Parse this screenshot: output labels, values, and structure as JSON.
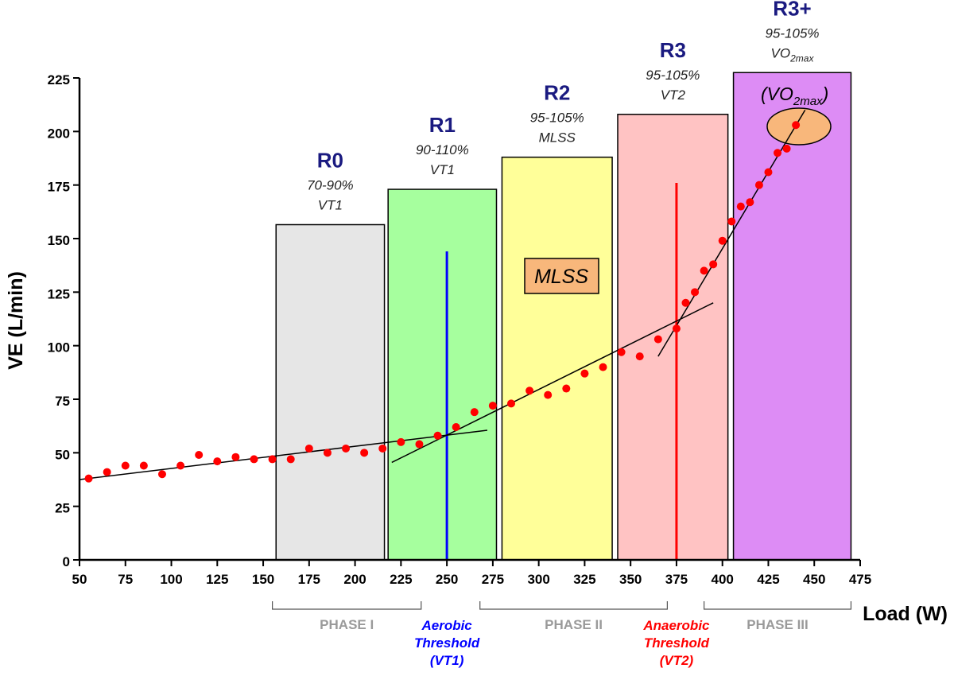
{
  "chart_data": {
    "type": "scatter",
    "title": "",
    "xlabel": "Load (W)",
    "ylabel": "VE (L/min)",
    "xlim": [
      50,
      475
    ],
    "ylim": [
      0,
      225
    ],
    "x_ticks": [
      50,
      75,
      100,
      125,
      150,
      175,
      200,
      225,
      250,
      275,
      300,
      325,
      350,
      375,
      400,
      425,
      450,
      475
    ],
    "y_ticks": [
      0,
      25,
      50,
      75,
      100,
      125,
      150,
      175,
      200,
      225
    ],
    "grid": false,
    "marker_color": "#ff0000",
    "series": [
      {
        "points": [
          {
            "x": 55,
            "y": 38
          },
          {
            "x": 65,
            "y": 41
          },
          {
            "x": 75,
            "y": 44
          },
          {
            "x": 85,
            "y": 44
          },
          {
            "x": 95,
            "y": 40
          },
          {
            "x": 105,
            "y": 44
          },
          {
            "x": 115,
            "y": 49
          },
          {
            "x": 125,
            "y": 46
          },
          {
            "x": 135,
            "y": 48
          },
          {
            "x": 145,
            "y": 47
          },
          {
            "x": 155,
            "y": 47
          },
          {
            "x": 165,
            "y": 47
          },
          {
            "x": 175,
            "y": 52
          },
          {
            "x": 185,
            "y": 50
          },
          {
            "x": 195,
            "y": 52
          },
          {
            "x": 205,
            "y": 50
          },
          {
            "x": 215,
            "y": 52
          },
          {
            "x": 225,
            "y": 55
          },
          {
            "x": 235,
            "y": 54
          },
          {
            "x": 245,
            "y": 58
          },
          {
            "x": 255,
            "y": 62
          },
          {
            "x": 265,
            "y": 69
          },
          {
            "x": 275,
            "y": 72
          },
          {
            "x": 285,
            "y": 73
          },
          {
            "x": 295,
            "y": 79
          },
          {
            "x": 305,
            "y": 77
          },
          {
            "x": 315,
            "y": 80
          },
          {
            "x": 325,
            "y": 87
          },
          {
            "x": 335,
            "y": 90
          },
          {
            "x": 345,
            "y": 97
          },
          {
            "x": 355,
            "y": 95
          },
          {
            "x": 365,
            "y": 103
          },
          {
            "x": 375,
            "y": 108
          },
          {
            "x": 380,
            "y": 120
          },
          {
            "x": 385,
            "y": 125
          },
          {
            "x": 390,
            "y": 135
          },
          {
            "x": 395,
            "y": 138
          },
          {
            "x": 400,
            "y": 149
          },
          {
            "x": 405,
            "y": 158
          },
          {
            "x": 410,
            "y": 165
          },
          {
            "x": 415,
            "y": 167
          },
          {
            "x": 420,
            "y": 175
          },
          {
            "x": 425,
            "y": 181
          },
          {
            "x": 430,
            "y": 190
          },
          {
            "x": 435,
            "y": 192
          },
          {
            "x": 440,
            "y": 203
          }
        ]
      }
    ],
    "trend_lines": [
      {
        "x1": 50,
        "y1": 37.5,
        "x2": 272,
        "y2": 60.5
      },
      {
        "x1": 220,
        "y1": 45.5,
        "x2": 395,
        "y2": 120
      },
      {
        "x1": 365,
        "y1": 95,
        "x2": 445,
        "y2": 210
      }
    ],
    "zones": [
      {
        "name": "R0",
        "sub1": "70-90%",
        "sub2": "VT1",
        "sub2_sub": "",
        "x0": 157,
        "x1": 216,
        "top": 156.5,
        "color": "#e6e6e6"
      },
      {
        "name": "R1",
        "sub1": "90-110%",
        "sub2": "VT1",
        "sub2_sub": "",
        "x0": 218,
        "x1": 277,
        "top": 173,
        "color": "#a6ff9e"
      },
      {
        "name": "R2",
        "sub1": "95-105%",
        "sub2": "MLSS",
        "sub2_sub": "",
        "x0": 280,
        "x1": 340,
        "top": 188,
        "color": "#ffff99"
      },
      {
        "name": "R3",
        "sub1": "95-105%",
        "sub2": "VT2",
        "sub2_sub": "",
        "x0": 343,
        "x1": 403,
        "top": 208,
        "color": "#ffc3c3"
      },
      {
        "name": "R3+",
        "sub1": "95-105%",
        "sub2": "VO",
        "sub2_sub": "2max",
        "x0": 406,
        "x1": 470,
        "top": 227.5,
        "color": "#dd8cf5"
      }
    ],
    "annotations": {
      "mlss_box": {
        "text": "MLSS",
        "fill": "#f8b77b"
      },
      "vo2max_label": {
        "open": "(VO",
        "sub": "2max",
        "close": ")"
      },
      "vo2max_ellipse": {
        "fill": "#f8b77b"
      }
    },
    "thresholds": [
      {
        "x": 250,
        "top": 144,
        "color": "#0000ff",
        "line1": "Aerobic",
        "line2": "Threshold",
        "line3": "(VT1)"
      },
      {
        "x": 375,
        "top": 176,
        "color": "#ff0000",
        "line1": "Anaerobic",
        "line2": "Threshold",
        "line3": "(VT2)"
      }
    ],
    "phases": [
      {
        "label": "PHASE I",
        "x0": 155,
        "x1": 236
      },
      {
        "label": "PHASE II",
        "x0": 268,
        "x1": 370
      },
      {
        "label": "PHASE III",
        "x0": 390,
        "x1": 470
      }
    ]
  }
}
